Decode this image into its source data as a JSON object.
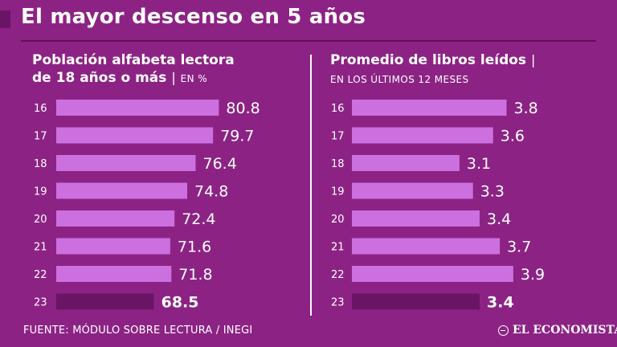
{
  "header": {
    "title": "El mayor descenso en 5 años"
  },
  "colors": {
    "background": "#8c2384",
    "bar": "#cc70e0",
    "bar_highlight": "#6a1466",
    "text": "#ffffff"
  },
  "footer": {
    "source": "FUENTE: MÓDULO SOBRE LECTURA / INEGI",
    "brand": "EL ECONOMISTA"
  },
  "chart_data": [
    {
      "type": "bar",
      "orientation": "horizontal",
      "title_line1": "Población alfabeta lectora",
      "title_line2": "de 18 años o más",
      "separator": "|",
      "unit": "EN %",
      "categories": [
        "16",
        "17",
        "18",
        "19",
        "20",
        "21",
        "22",
        "23"
      ],
      "values": [
        80.8,
        79.7,
        76.4,
        74.8,
        72.4,
        71.6,
        71.8,
        68.5
      ],
      "value_labels": [
        "80.8",
        "79.7",
        "76.4",
        "74.8",
        "72.4",
        "71.6",
        "71.8",
        "68.5"
      ],
      "highlight_index": 7,
      "xlim": [
        50,
        85
      ]
    },
    {
      "type": "bar",
      "orientation": "horizontal",
      "title": "Promedio de libros leídos",
      "separator": "|",
      "subtitle": "EN LOS ÚLTIMOS 12 MESES",
      "categories": [
        "16",
        "17",
        "18",
        "19",
        "20",
        "21",
        "22",
        "23"
      ],
      "values": [
        3.8,
        3.6,
        3.1,
        3.3,
        3.4,
        3.7,
        3.9,
        3.4
      ],
      "value_labels": [
        "3.8",
        "3.6",
        "3.1",
        "3.3",
        "3.4",
        "3.7",
        "3.9",
        "3.4"
      ],
      "highlight_index": 7,
      "xlim": [
        1.5,
        4.2
      ]
    }
  ]
}
